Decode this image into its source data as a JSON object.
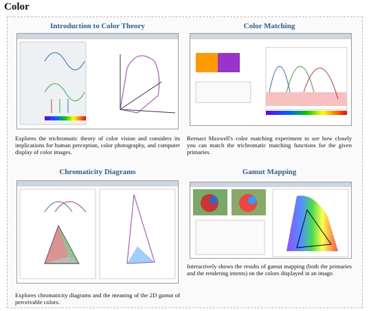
{
  "header": {
    "title": "Color"
  },
  "cards": [
    {
      "title": "Introduction to Color Theory",
      "description": "Explores the trichromatic theory of color vision and considers its implications for human perception, color photography, and computer display of color images."
    },
    {
      "title": "Color Matching",
      "description": "Reenact Maxwell's color matching experiment to see how closely you can match the trichromatic matching functions for the given primaries."
    },
    {
      "title": "Chromaticity Diagrams",
      "description": "Explores chromaticity diagrams and the meaning of the 2D gamut of perceivable colors."
    },
    {
      "title": "Gamut Mapping",
      "description": "Interactively shows the results of gamut mapping (both the primaries and the rendering intents) on the colors displayed in an image."
    }
  ]
}
